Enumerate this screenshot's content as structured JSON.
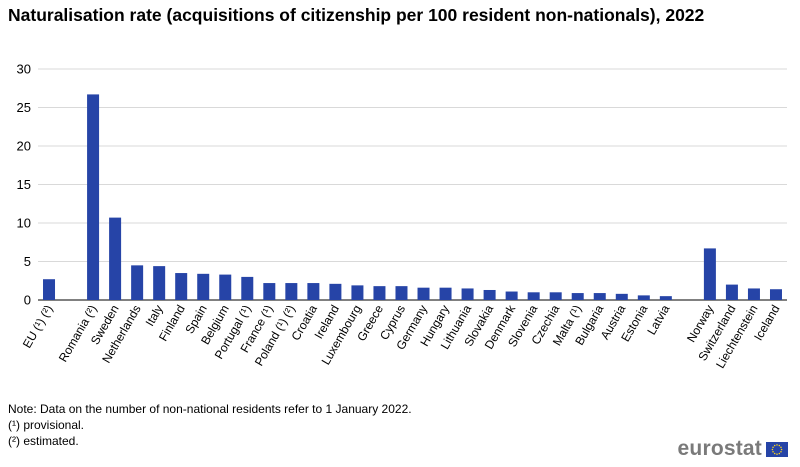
{
  "title": "Naturalisation rate (acquisitions of citizenship per 100 resident non-nationals), 2022",
  "notes": {
    "line1": "Note: Data on the number of non-national residents refer to 1 January 2022.",
    "line2": "(¹) provisional.",
    "line3": "(²) estimated."
  },
  "logo_text": "eurostat",
  "colors": {
    "bar": "#2644A7",
    "grid": "#d9d9d9",
    "axis": "#000000",
    "logo": "#7a7a7a",
    "flag": "#2644A7",
    "flag_stars": "#FFD617"
  },
  "chart_data": {
    "type": "bar",
    "title": "Naturalisation rate (acquisitions of citizenship per 100 resident non-nationals), 2022",
    "xlabel": "",
    "ylabel": "",
    "ylim": [
      0,
      30
    ],
    "yticks": [
      0,
      5,
      10,
      15,
      20,
      25,
      30
    ],
    "grid": true,
    "categories": [
      "EU (¹) (²)",
      "",
      "Romania (²)",
      "Sweden",
      "Netherlands",
      "Italy",
      "Finland",
      "Spain",
      "Belgium",
      "Portugal (¹)",
      "France (¹)",
      "Poland (¹) (²)",
      "Croatia",
      "Ireland",
      "Luxembourg",
      "Greece",
      "Cyprus",
      "Germany",
      "Hungary",
      "Lithuania",
      "Slovakia",
      "Denmark",
      "Slovenia",
      "Czechia",
      "Malta (¹)",
      "Bulgaria",
      "Austria",
      "Estonia",
      "Latvia",
      "",
      "Norway",
      "Switzerland",
      "Liechtenstein",
      "Iceland"
    ],
    "values": [
      2.7,
      null,
      26.7,
      10.7,
      4.5,
      4.4,
      3.5,
      3.4,
      3.3,
      3.0,
      2.2,
      2.2,
      2.2,
      2.1,
      1.9,
      1.8,
      1.8,
      1.6,
      1.6,
      1.5,
      1.3,
      1.1,
      1.0,
      1.0,
      0.9,
      0.9,
      0.8,
      0.6,
      0.5,
      null,
      6.7,
      2.0,
      1.5,
      1.4
    ]
  }
}
